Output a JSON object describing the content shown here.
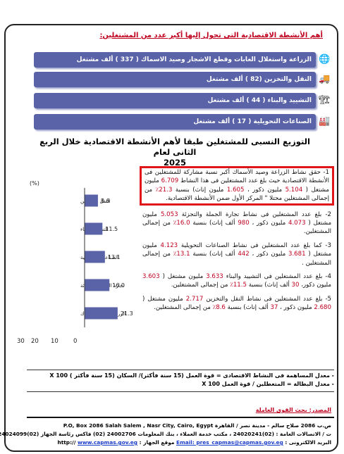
{
  "title": "أهم الأنشطة الاقتصادية التى تحول إليها أكبر عدد من المشتغلين:",
  "activity_bars": [
    {
      "label": "الزراعة واستغلال الغابات وقطع الاشجار وصيد الاسماك ( 337 ) ألف مشتغل",
      "icon": "globe-icon"
    },
    {
      "label": "النقل والتخزين (82 ) ألف مشتغل",
      "icon": "truck-icon"
    },
    {
      "label": "التشييد والبناء ( 44 ) ألف مشتغل",
      "icon": "crane-icon"
    },
    {
      "label": "الصناعات التحويلية ( 17 ) ألف مشتغل",
      "icon": "factory-icon"
    }
  ],
  "subtitle_line1": "التوزيع النسبى للمشتغلين طبقا   لأهم الأنشطة الاقتصادية خلال الربع الثانى لعام",
  "subtitle_line2": "2025",
  "chart_data": {
    "type": "bar",
    "orientation": "horizontal",
    "unit_label": "(%)",
    "categories": [
      "النقل والتخزين",
      "التشييد والبناء",
      "الصناعات التحويلية",
      "تجارة الجملة والتجزئة",
      "الزراعة وصيد الأسماك"
    ],
    "values": [
      8.6,
      11.5,
      13.1,
      16.0,
      21.3
    ],
    "value_labels": [
      "8.6",
      "11.5",
      "13.1",
      "16.0",
      "21.3"
    ],
    "xlim": [
      0,
      30
    ],
    "xticks": [
      "30",
      "20",
      "10",
      "0"
    ],
    "bar_color": "#5a63a8",
    "grid": false
  },
  "paragraphs": {
    "p1": {
      "a": "1- حقق نشاط الزراعة وصيد الأسماك أكبر نسبة مشاركة للمشتغلين فى الأنشطة الاقتصادية حيث بلغ عدد المشتغلين فى هذا النشاط",
      "total": "6.709",
      "b": "مليون مشتغل (",
      "males": "5.104",
      "c": "مليون ذكور ،",
      "females": "1.605",
      "d": "مليون إناث) بنسبة",
      "pct": "21.3٪",
      "e": "من إجمالى المشتغلين محتلا \" المركز الأول ضمن الأنشطة الاقتصادية."
    },
    "p2": {
      "a": "2- بلغ عدد المشتغلين فى نشاط تجارة الجملة والتجزئة",
      "total": "5.053",
      "b": "مليون مشتغل (",
      "males": "4.073",
      "c": "مليون ذكور ،",
      "females": "980",
      "d": "ألف إناث) بنسبة",
      "pct": "16.0٪",
      "e": "من إجمالى المشتغلين."
    },
    "p3": {
      "a": "3- كما بلغ عدد المشتغلين فى نشاط الصناعات التحويلية",
      "total": "4.123",
      "b": "مليون مشتغل (",
      "males": "3.681",
      "c": "مليون ذكور ،",
      "females": "442",
      "d": "ألف إناث) بنسبة",
      "pct": "13.1٪",
      "e": "من إجمالى المشتغلين ."
    },
    "p4": {
      "a": "4- بلغ عدد المشتغلين فى التشييد والبناء",
      "total": "3.633",
      "b": "مليون مشتغل (",
      "males": "3.603",
      "c": "مليون ذكور،",
      "females": "30",
      "d": "ألف إناث) بنسبة",
      "pct": "11.5٪",
      "e": "من إجمالى المشتغلين."
    },
    "p5": {
      "a": "5- بلغ عدد المشتغلين فى نشاط النقل والتخزين",
      "total": "2.717",
      "b": "مليون مشتغل (",
      "males": "2.680",
      "c": "مليون ذكور ،",
      "females": "37",
      "d": "ألف إناث) بنسبة",
      "pct": "8.6٪",
      "e": "من إجمالى المشتغلين."
    }
  },
  "formulas": {
    "f1": "- معدل المساهمة فى النشاط الاقتصادى = قوة العمل (15 سنة فأكثر)/ السكان (15 سنة فأكثر ) X 100",
    "f2": "- معدل البطالة = المتعطلين / قوة العمل X 100"
  },
  "source": "المصدر: بحث القوى العاملة",
  "footer": {
    "address": "ص.ب 2086 صلاح سالم - مدينة نصر / القاهرة   P.O, Box 2086 Salah Salem , Nasr City, Cairo, Egypt",
    "phones": "ت / الاتصالات العامة : (02)24020241 ، مكتب خدمة العملاء ، بنك المعلومات 24002706 (02) فاكس رئاسة الجهاز (02)24024099",
    "email_label": "البريد الالكترونى :",
    "email": "Email: pres_capmas@capmas.gov.eg",
    "site_label": "موقع الجهاز : http://",
    "site": "www.capmas.gov.eg"
  },
  "colors": {
    "accent_red": "#c0001f",
    "bar_blue": "#5a63a8",
    "link_blue": "#1a3cc8"
  }
}
